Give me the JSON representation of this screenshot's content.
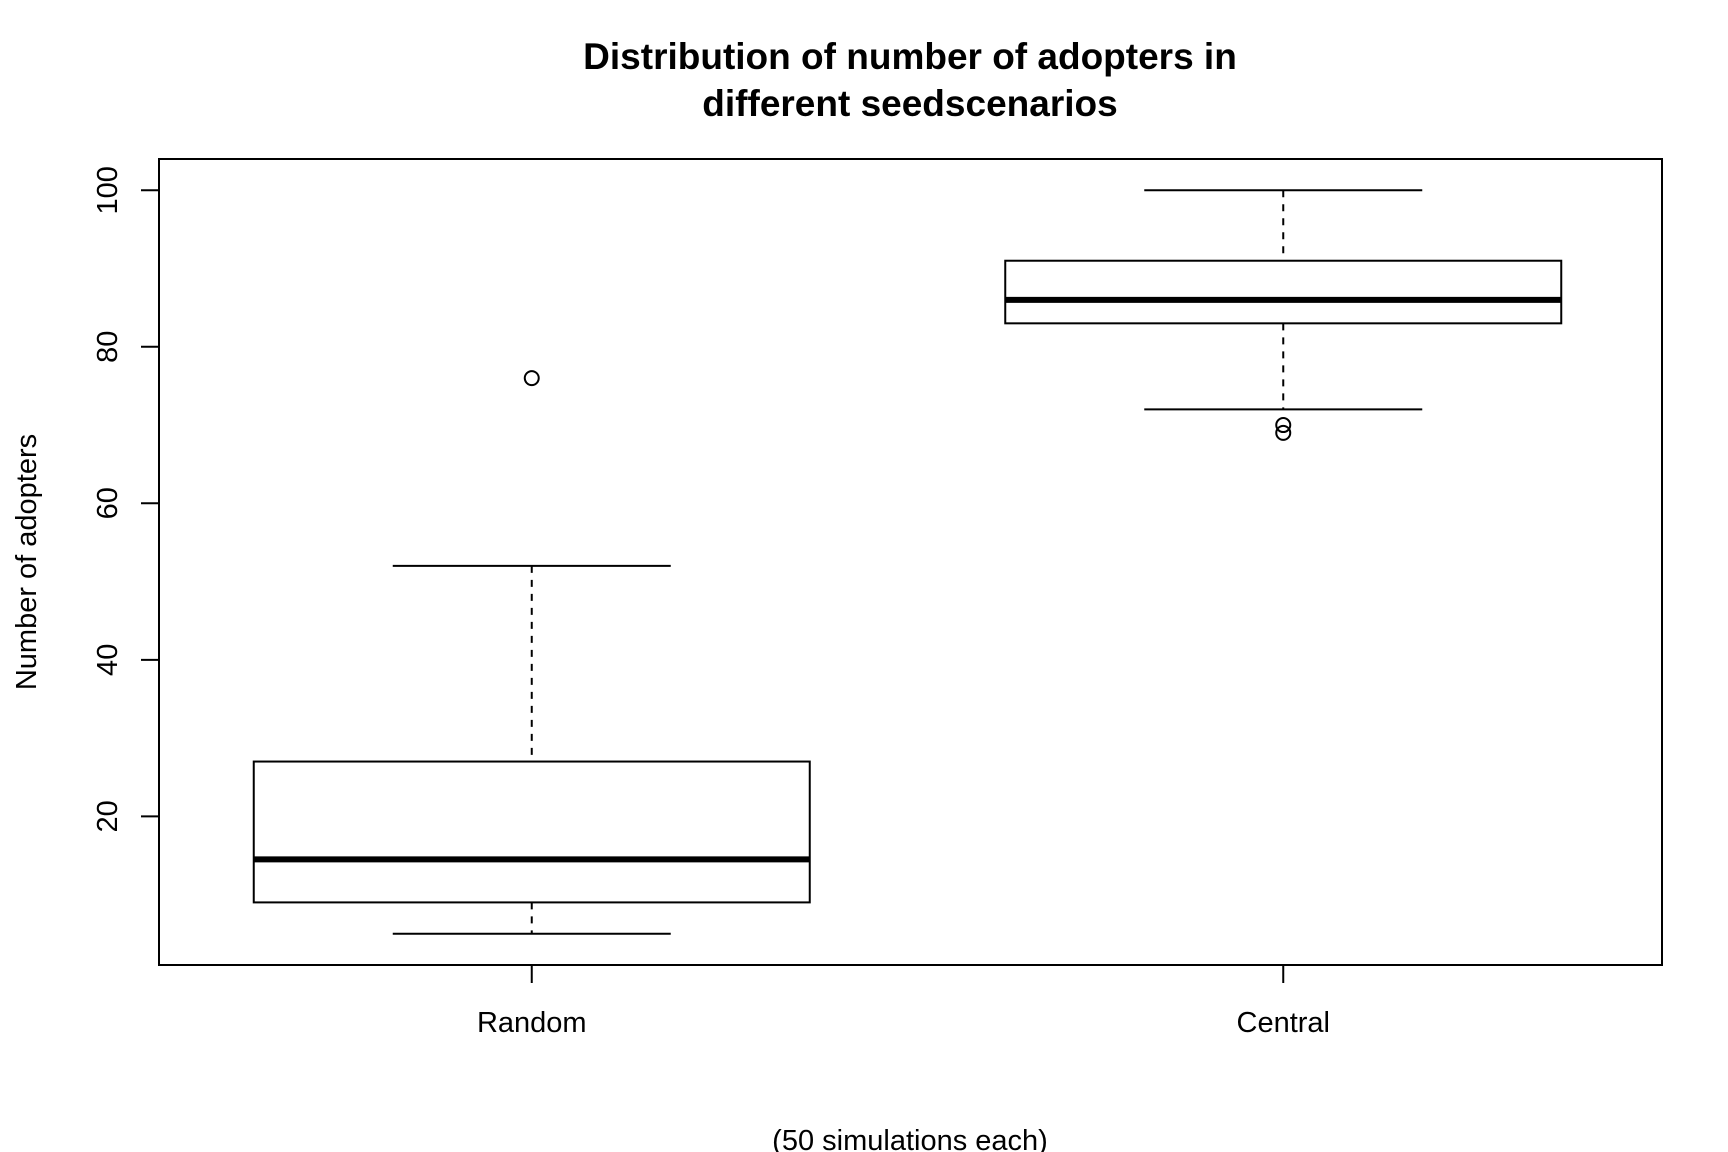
{
  "chart_data": {
    "type": "boxplot",
    "title": [
      "Distribution of number of adopters in",
      "different seedscenarios"
    ],
    "xlabel": "(50 simulations each)",
    "ylabel": "Number of adopters",
    "ylim": [
      1,
      104
    ],
    "yticks": [
      20,
      40,
      60,
      80,
      100
    ],
    "categories": [
      "Random",
      "Central"
    ],
    "boxes": [
      {
        "name": "Random",
        "whisker_low": 5,
        "q1": 9,
        "median": 14.5,
        "q3": 27,
        "whisker_high": 52,
        "outliers": [
          76
        ]
      },
      {
        "name": "Central",
        "whisker_low": 72,
        "q1": 83,
        "median": 86,
        "q3": 91,
        "whisker_high": 100,
        "outliers": [
          70,
          69
        ]
      }
    ],
    "grid": false,
    "legend": "none"
  }
}
